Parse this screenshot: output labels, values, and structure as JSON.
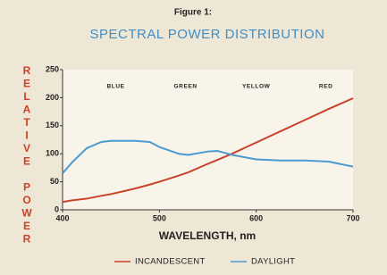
{
  "chart_data": {
    "type": "line",
    "title": "Figure 1:",
    "subtitle": "SPECTRAL POWER DISTRIBUTION",
    "y_label": "RELATIVE POWER",
    "x_label": "WAVELENGTH, nm",
    "xlim": [
      400,
      700
    ],
    "xticks": [
      400,
      500,
      600,
      700
    ],
    "ylim": [
      0,
      250
    ],
    "yticks": [
      0,
      50,
      100,
      150,
      200,
      250
    ],
    "annotations": [
      {
        "text": "BLUE",
        "x": 455
      },
      {
        "text": "GREEN",
        "x": 527
      },
      {
        "text": "YELLOW",
        "x": 600
      },
      {
        "text": "RED",
        "x": 672
      }
    ],
    "x": [
      400,
      410,
      425,
      440,
      450,
      475,
      490,
      500,
      520,
      530,
      550,
      560,
      575,
      600,
      625,
      650,
      675,
      700
    ],
    "series": [
      {
        "name": "INCANDESCENT",
        "color": "#c9432a",
        "values": [
          14,
          17,
          20,
          25,
          28,
          38,
          45,
          50,
          61,
          67,
          82,
          89,
          100,
          120,
          140,
          160,
          180,
          199
        ]
      },
      {
        "name": "DAYLIGHT",
        "color": "#4a9bcf",
        "values": [
          65,
          85,
          110,
          121,
          123,
          123,
          121,
          112,
          100,
          98,
          104,
          105,
          98,
          90,
          88,
          88,
          86,
          77
        ]
      }
    ],
    "legend": "bottom"
  }
}
